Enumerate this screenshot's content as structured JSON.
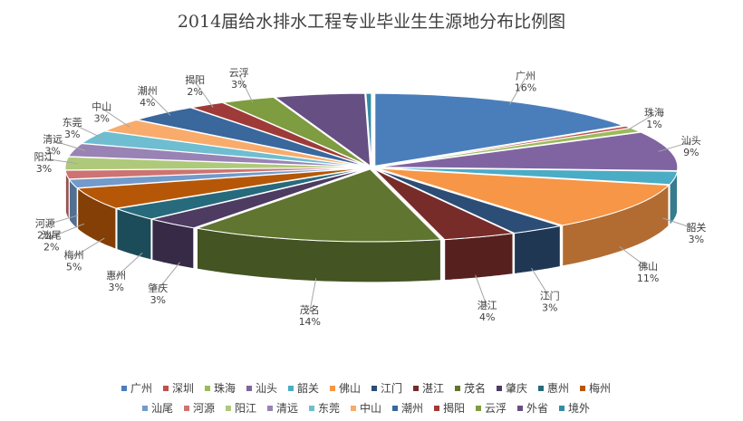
{
  "chart_data": {
    "type": "pie",
    "style": "3d-exploded",
    "title": "2014届给水排水工程专业毕业生生源地分布比例图",
    "legend_position": "bottom",
    "categories": [
      "广州",
      "深圳",
      "珠海",
      "汕头",
      "韶关",
      "佛山",
      "江门",
      "湛江",
      "茂名",
      "肇庆",
      "惠州",
      "梅州",
      "汕尾",
      "河源",
      "阳江",
      "清远",
      "东莞",
      "中山",
      "潮州",
      "揭阳",
      "云浮",
      "外省",
      "境外"
    ],
    "values": [
      16,
      0.5,
      1,
      9,
      3,
      11,
      3,
      4,
      14,
      3,
      3,
      5,
      2,
      2,
      3,
      3,
      3,
      3,
      4,
      2,
      3,
      5,
      0.3
    ],
    "data_labels": [
      "16%",
      "",
      "1%",
      "9%",
      "3%",
      "11%",
      "3%",
      "4%",
      "14%",
      "3%",
      "3%",
      "5%",
      "2%",
      "2%",
      "3%",
      "3%",
      "3%",
      "3%",
      "4%",
      "2%",
      "3%",
      "",
      ""
    ],
    "colors": {
      "广州": "#4a7ebb",
      "深圳": "#c0504d",
      "珠海": "#9bbb59",
      "汕头": "#8064a2",
      "韶关": "#4bacc6",
      "佛山": "#f79646",
      "江门": "#2c4d75",
      "湛江": "#772c2a",
      "茂名": "#5f7530",
      "肇庆": "#4d3b62",
      "惠州": "#276a7c",
      "梅州": "#b65708",
      "汕尾": "#729aca",
      "河源": "#cd7371",
      "阳江": "#afc97a",
      "清远": "#9983b5",
      "东莞": "#6fbdd1",
      "中山": "#f9ab6b",
      "潮州": "#3a679c",
      "揭阳": "#9e3b38",
      "云浮": "#7e9c40",
      "外省": "#664f83",
      "境外": "#338ca5"
    }
  }
}
